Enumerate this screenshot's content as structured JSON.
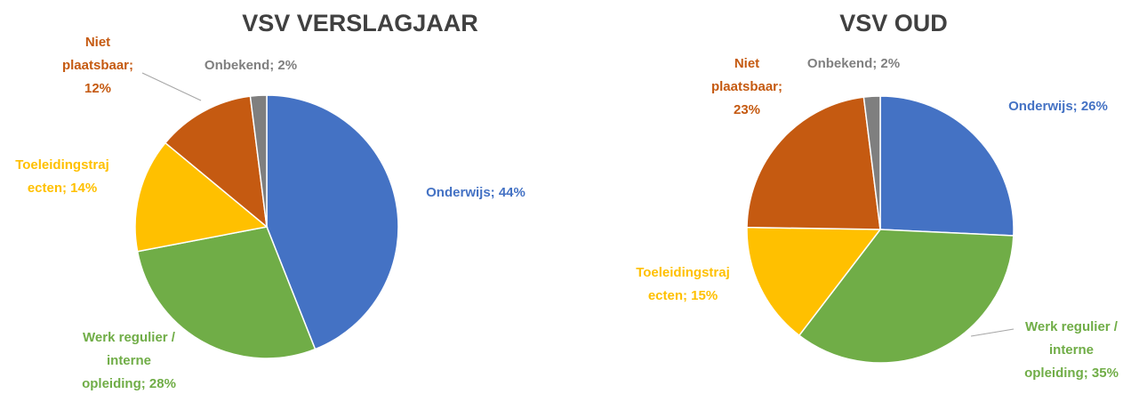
{
  "chart_data": [
    {
      "type": "pie",
      "title": "VSV VERSLAGJAAR",
      "values": [
        44,
        28,
        14,
        12,
        2
      ],
      "value_labels": [
        [
          "Onderwijs; 44%"
        ],
        [
          "Werk regulier /",
          "interne",
          "opleiding; 28%"
        ],
        [
          "Toeleidingstraj",
          "ecten; 14%"
        ],
        [
          "Niet",
          "plaatsbaar;",
          "12%"
        ],
        [
          "Onbekend; 2%"
        ]
      ],
      "colors": [
        "#4472c4",
        "#70ad47",
        "#ffc000",
        "#c55a11",
        "#7f7f7f"
      ]
    },
    {
      "type": "pie",
      "title": "VSV OUD",
      "values": [
        26,
        35,
        15,
        23,
        2
      ],
      "value_labels": [
        [
          "Onderwijs; 26%"
        ],
        [
          "Werk regulier /",
          "interne",
          "opleiding; 35%"
        ],
        [
          "Toeleidingstraj",
          "ecten; 15%"
        ],
        [
          "Niet",
          "plaatsbaar;",
          "23%"
        ],
        [
          "Onbekend; 2%"
        ]
      ],
      "colors": [
        "#4472c4",
        "#70ad47",
        "#ffc000",
        "#c55a11",
        "#7f7f7f"
      ]
    }
  ]
}
